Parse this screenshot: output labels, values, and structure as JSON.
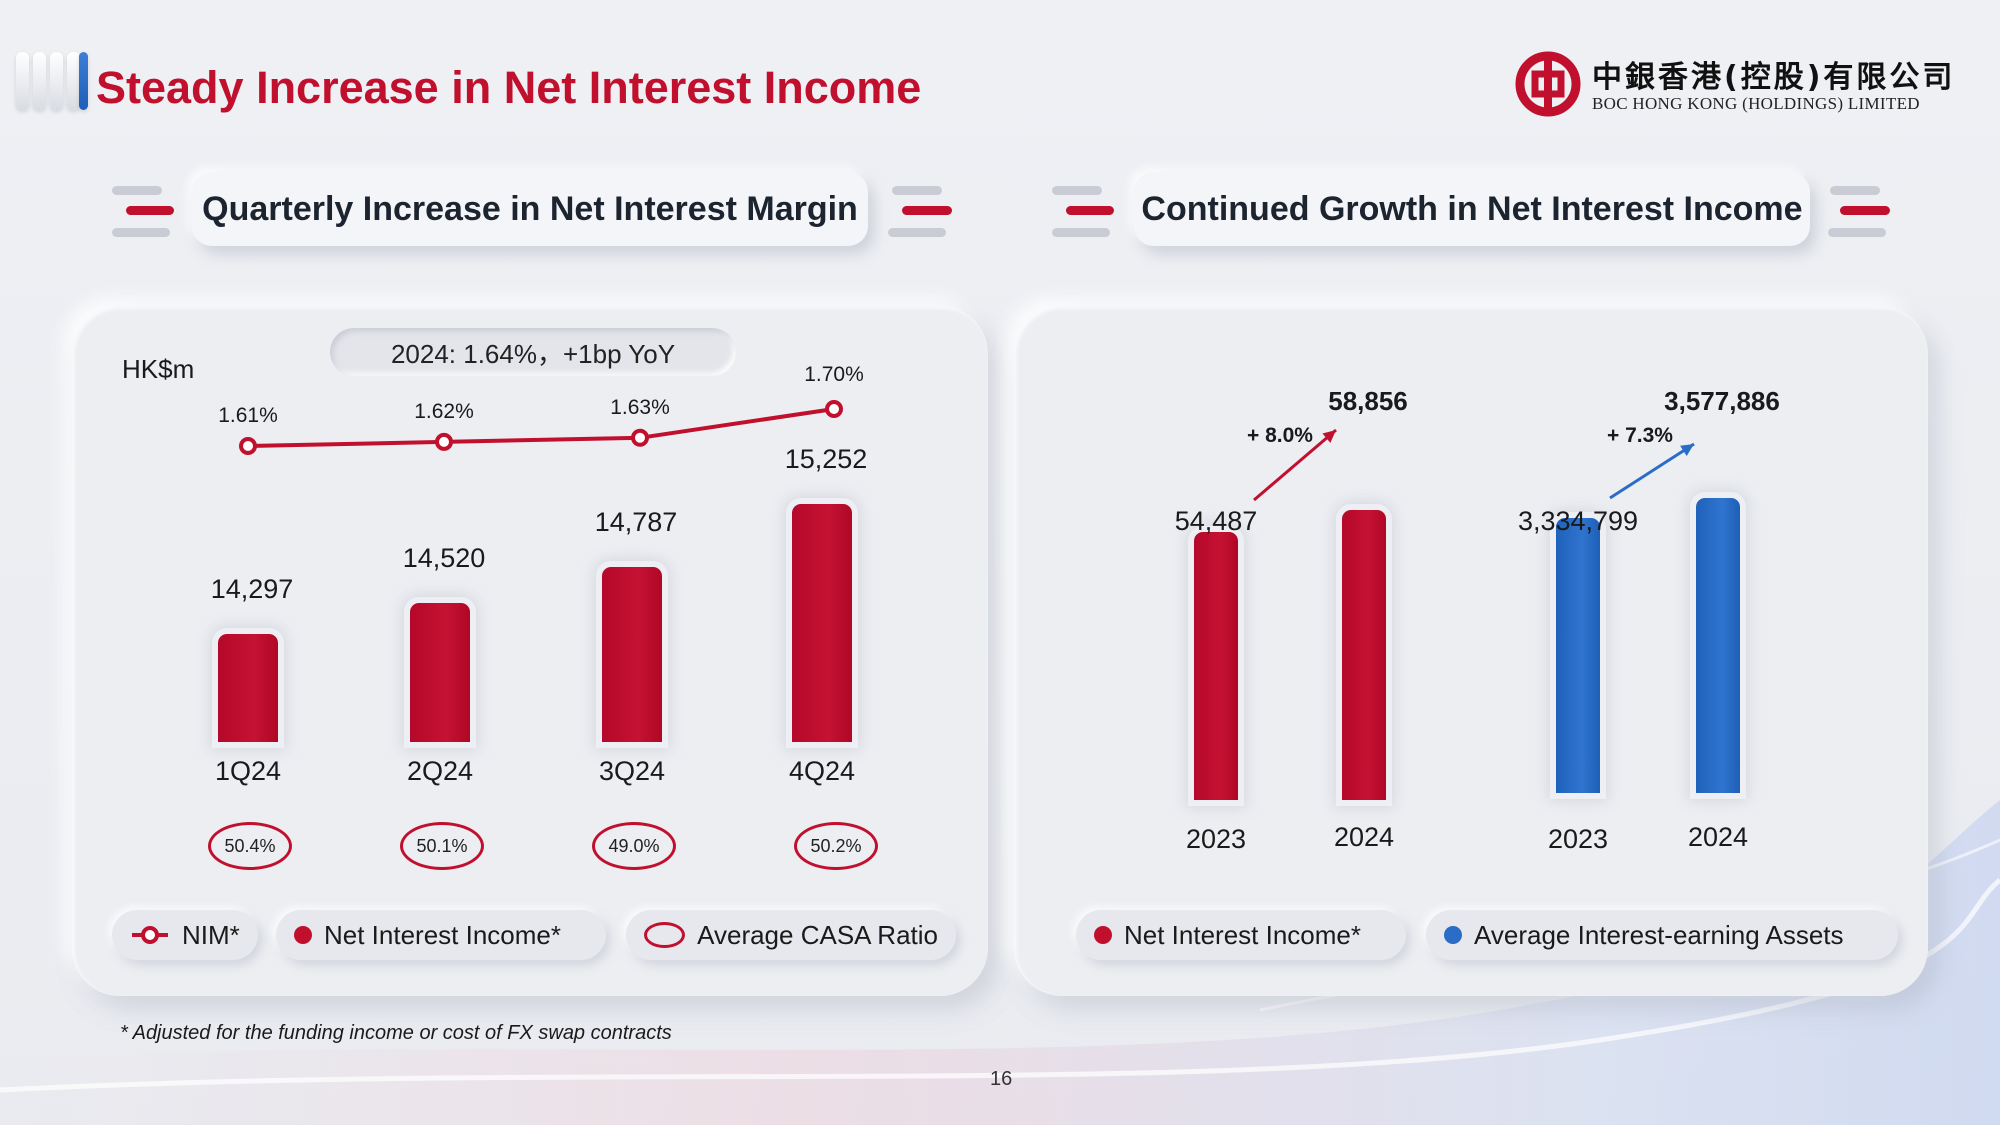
{
  "title": "Steady Increase in Net Interest Income",
  "logo": {
    "cn": "中銀香港(控股)有限公司",
    "en": "BOC HONG KONG (HOLDINGS) LIMITED"
  },
  "page_number": "16",
  "footnote": "* Adjusted for the funding income or cost of FX swap contracts",
  "colors": {
    "brand_red": "#c0102e",
    "blue": "#2a6cc6"
  },
  "icons": [
    "boc-logo-icon"
  ],
  "left_panel": {
    "header": "Quarterly Increase in Net Interest Margin",
    "unit": "HK$m",
    "nim_summary": "2024: 1.64%，+1bp YoY",
    "legend": {
      "nim": "NIM*",
      "nii": "Net Interest Income*",
      "casa": "Average CASA Ratio"
    }
  },
  "right_panel": {
    "header": "Continued Growth in Net Interest Income",
    "legend": {
      "nii": "Net Interest Income*",
      "aiea": "Average Interest-earning Assets"
    }
  },
  "chart_data": [
    {
      "type": "bar",
      "categories": [
        "1Q24",
        "2Q24",
        "3Q24",
        "4Q24"
      ],
      "series": [
        {
          "name": "Net Interest Income*",
          "values": [
            14297,
            14520,
            14787,
            15252
          ],
          "labels": [
            "14,297",
            "14,520",
            "14,787",
            "15,252"
          ]
        },
        {
          "name": "NIM*",
          "type": "line",
          "values": [
            1.61,
            1.62,
            1.63,
            1.7
          ],
          "labels": [
            "1.61%",
            "1.62%",
            "1.63%",
            "1.70%"
          ]
        },
        {
          "name": "Average CASA Ratio",
          "values": [
            50.4,
            50.1,
            49.0,
            50.2
          ],
          "labels": [
            "50.4%",
            "50.1%",
            "49.0%",
            "50.2%"
          ]
        }
      ],
      "ylabel": "HK$m",
      "ylim": [
        13500,
        15400
      ]
    },
    {
      "type": "bar",
      "groups": [
        {
          "name": "Net Interest Income*",
          "categories": [
            "2023",
            "2024"
          ],
          "values": [
            54487,
            58856
          ],
          "labels": [
            "54,487",
            "58,856"
          ],
          "growth": "+ 8.0%"
        },
        {
          "name": "Average Interest-earning Assets",
          "categories": [
            "2023",
            "2024"
          ],
          "values": [
            3334799,
            3577886
          ],
          "labels": [
            "3,334,799",
            "3,577,886"
          ],
          "growth": "+ 7.3%"
        }
      ]
    }
  ]
}
